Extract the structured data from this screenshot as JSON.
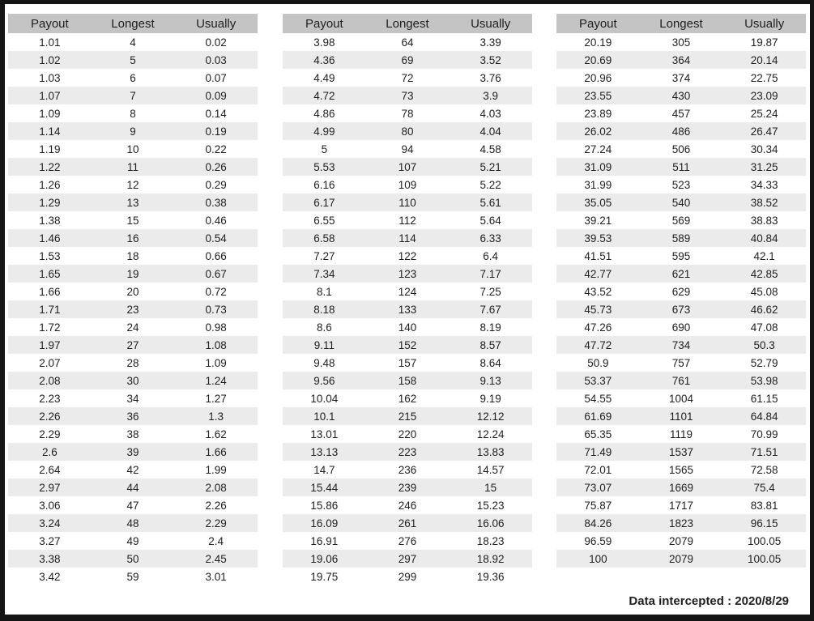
{
  "columns": [
    "Payout",
    "Longest",
    "Usually"
  ],
  "tables": [
    {
      "name": "table-1",
      "rows": [
        [
          "1.01",
          "4",
          "0.02"
        ],
        [
          "1.02",
          "5",
          "0.03"
        ],
        [
          "1.03",
          "6",
          "0.07"
        ],
        [
          "1.07",
          "7",
          "0.09"
        ],
        [
          "1.09",
          "8",
          "0.14"
        ],
        [
          "1.14",
          "9",
          "0.19"
        ],
        [
          "1.19",
          "10",
          "0.22"
        ],
        [
          "1.22",
          "11",
          "0.26"
        ],
        [
          "1.26",
          "12",
          "0.29"
        ],
        [
          "1.29",
          "13",
          "0.38"
        ],
        [
          "1.38",
          "15",
          "0.46"
        ],
        [
          "1.46",
          "16",
          "0.54"
        ],
        [
          "1.53",
          "18",
          "0.66"
        ],
        [
          "1.65",
          "19",
          "0.67"
        ],
        [
          "1.66",
          "20",
          "0.72"
        ],
        [
          "1.71",
          "23",
          "0.73"
        ],
        [
          "1.72",
          "24",
          "0.98"
        ],
        [
          "1.97",
          "27",
          "1.08"
        ],
        [
          "2.07",
          "28",
          "1.09"
        ],
        [
          "2.08",
          "30",
          "1.24"
        ],
        [
          "2.23",
          "34",
          "1.27"
        ],
        [
          "2.26",
          "36",
          "1.3"
        ],
        [
          "2.29",
          "38",
          "1.62"
        ],
        [
          "2.6",
          "39",
          "1.66"
        ],
        [
          "2.64",
          "42",
          "1.99"
        ],
        [
          "2.97",
          "44",
          "2.08"
        ],
        [
          "3.06",
          "47",
          "2.26"
        ],
        [
          "3.24",
          "48",
          "2.29"
        ],
        [
          "3.27",
          "49",
          "2.4"
        ],
        [
          "3.38",
          "50",
          "2.45"
        ],
        [
          "3.42",
          "59",
          "3.01"
        ]
      ]
    },
    {
      "name": "table-2",
      "rows": [
        [
          "3.98",
          "64",
          "3.39"
        ],
        [
          "4.36",
          "69",
          "3.52"
        ],
        [
          "4.49",
          "72",
          "3.76"
        ],
        [
          "4.72",
          "73",
          "3.9"
        ],
        [
          "4.86",
          "78",
          "4.03"
        ],
        [
          "4.99",
          "80",
          "4.04"
        ],
        [
          "5",
          "94",
          "4.58"
        ],
        [
          "5.53",
          "107",
          "5.21"
        ],
        [
          "6.16",
          "109",
          "5.22"
        ],
        [
          "6.17",
          "110",
          "5.61"
        ],
        [
          "6.55",
          "112",
          "5.64"
        ],
        [
          "6.58",
          "114",
          "6.33"
        ],
        [
          "7.27",
          "122",
          "6.4"
        ],
        [
          "7.34",
          "123",
          "7.17"
        ],
        [
          "8.1",
          "124",
          "7.25"
        ],
        [
          "8.18",
          "133",
          "7.67"
        ],
        [
          "8.6",
          "140",
          "8.19"
        ],
        [
          "9.11",
          "152",
          "8.57"
        ],
        [
          "9.48",
          "157",
          "8.64"
        ],
        [
          "9.56",
          "158",
          "9.13"
        ],
        [
          "10.04",
          "162",
          "9.19"
        ],
        [
          "10.1",
          "215",
          "12.12"
        ],
        [
          "13.01",
          "220",
          "12.24"
        ],
        [
          "13.13",
          "223",
          "13.83"
        ],
        [
          "14.7",
          "236",
          "14.57"
        ],
        [
          "15.44",
          "239",
          "15"
        ],
        [
          "15.86",
          "246",
          "15.23"
        ],
        [
          "16.09",
          "261",
          "16.06"
        ],
        [
          "16.91",
          "276",
          "18.23"
        ],
        [
          "19.06",
          "297",
          "18.92"
        ],
        [
          "19.75",
          "299",
          "19.36"
        ]
      ]
    },
    {
      "name": "table-3",
      "rows": [
        [
          "20.19",
          "305",
          "19.87"
        ],
        [
          "20.69",
          "364",
          "20.14"
        ],
        [
          "20.96",
          "374",
          "22.75"
        ],
        [
          "23.55",
          "430",
          "23.09"
        ],
        [
          "23.89",
          "457",
          "25.24"
        ],
        [
          "26.02",
          "486",
          "26.47"
        ],
        [
          "27.24",
          "506",
          "30.34"
        ],
        [
          "31.09",
          "511",
          "31.25"
        ],
        [
          "31.99",
          "523",
          "34.33"
        ],
        [
          "35.05",
          "540",
          "38.52"
        ],
        [
          "39.21",
          "569",
          "38.83"
        ],
        [
          "39.53",
          "589",
          "40.84"
        ],
        [
          "41.51",
          "595",
          "42.1"
        ],
        [
          "42.77",
          "621",
          "42.85"
        ],
        [
          "43.52",
          "629",
          "45.08"
        ],
        [
          "45.73",
          "673",
          "46.62"
        ],
        [
          "47.26",
          "690",
          "47.08"
        ],
        [
          "47.72",
          "734",
          "50.3"
        ],
        [
          "50.9",
          "757",
          "52.79"
        ],
        [
          "53.37",
          "761",
          "53.98"
        ],
        [
          "54.55",
          "1004",
          "61.15"
        ],
        [
          "61.69",
          "1101",
          "64.84"
        ],
        [
          "65.35",
          "1119",
          "70.99"
        ],
        [
          "71.49",
          "1537",
          "71.51"
        ],
        [
          "72.01",
          "1565",
          "72.58"
        ],
        [
          "73.07",
          "1669",
          "75.4"
        ],
        [
          "75.87",
          "1717",
          "83.81"
        ],
        [
          "84.26",
          "1823",
          "96.15"
        ],
        [
          "96.59",
          "2079",
          "100.05"
        ],
        [
          "100",
          "2079",
          "100.05"
        ]
      ]
    }
  ],
  "footer": {
    "text": "Data intercepted : 2020/8/29"
  },
  "colors": {
    "frame": "#141414",
    "header_bg": "#c4c4c4",
    "stripe_bg": "#ebebeb",
    "text": "#1f1f1f",
    "background": "#ffffff"
  }
}
